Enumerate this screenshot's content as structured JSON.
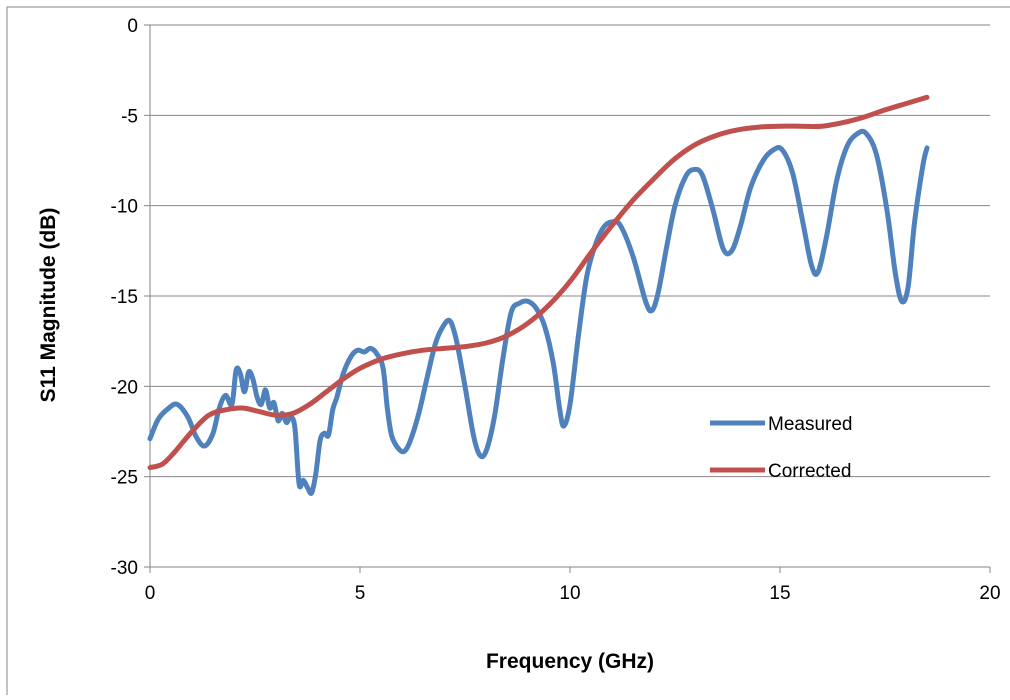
{
  "chart_data": {
    "type": "line",
    "title": "",
    "xlabel": "Frequency (GHz)",
    "ylabel": "S11 Magnitude (dB)",
    "xlim": [
      0,
      20
    ],
    "ylim": [
      -30,
      0
    ],
    "xticks": [
      0,
      5,
      10,
      15,
      20
    ],
    "yticks": [
      0,
      -5,
      -10,
      -15,
      -20,
      -25,
      -30
    ],
    "grid": "horizontal",
    "legend_position": "right, lower-middle",
    "series": [
      {
        "name": "Measured",
        "color": "#4F81BD",
        "points": [
          [
            0.0,
            -22.9
          ],
          [
            0.2,
            -21.8
          ],
          [
            0.45,
            -21.2
          ],
          [
            0.65,
            -21.0
          ],
          [
            0.9,
            -21.7
          ],
          [
            1.1,
            -22.8
          ],
          [
            1.3,
            -23.3
          ],
          [
            1.5,
            -22.6
          ],
          [
            1.65,
            -21.2
          ],
          [
            1.8,
            -20.5
          ],
          [
            1.95,
            -21.0
          ],
          [
            2.05,
            -19.1
          ],
          [
            2.15,
            -19.3
          ],
          [
            2.25,
            -20.3
          ],
          [
            2.35,
            -19.2
          ],
          [
            2.45,
            -19.6
          ],
          [
            2.55,
            -20.6
          ],
          [
            2.65,
            -21.0
          ],
          [
            2.75,
            -20.2
          ],
          [
            2.85,
            -21.2
          ],
          [
            2.95,
            -20.9
          ],
          [
            3.05,
            -21.9
          ],
          [
            3.15,
            -21.5
          ],
          [
            3.25,
            -22.0
          ],
          [
            3.35,
            -21.7
          ],
          [
            3.45,
            -22.3
          ],
          [
            3.55,
            -25.4
          ],
          [
            3.65,
            -25.2
          ],
          [
            3.75,
            -25.6
          ],
          [
            3.85,
            -25.9
          ],
          [
            3.95,
            -24.8
          ],
          [
            4.05,
            -23.0
          ],
          [
            4.15,
            -22.6
          ],
          [
            4.25,
            -22.7
          ],
          [
            4.35,
            -21.3
          ],
          [
            4.45,
            -20.6
          ],
          [
            4.6,
            -19.3
          ],
          [
            4.8,
            -18.3
          ],
          [
            4.95,
            -18.0
          ],
          [
            5.1,
            -18.1
          ],
          [
            5.25,
            -17.9
          ],
          [
            5.4,
            -18.2
          ],
          [
            5.55,
            -19.0
          ],
          [
            5.65,
            -21.2
          ],
          [
            5.75,
            -22.7
          ],
          [
            5.9,
            -23.4
          ],
          [
            6.05,
            -23.6
          ],
          [
            6.2,
            -23.0
          ],
          [
            6.4,
            -21.5
          ],
          [
            6.6,
            -19.5
          ],
          [
            6.8,
            -17.6
          ],
          [
            7.0,
            -16.6
          ],
          [
            7.15,
            -16.4
          ],
          [
            7.3,
            -17.5
          ],
          [
            7.5,
            -20.0
          ],
          [
            7.7,
            -22.7
          ],
          [
            7.85,
            -23.8
          ],
          [
            8.0,
            -23.6
          ],
          [
            8.2,
            -21.7
          ],
          [
            8.4,
            -18.5
          ],
          [
            8.6,
            -15.9
          ],
          [
            8.8,
            -15.4
          ],
          [
            9.0,
            -15.3
          ],
          [
            9.2,
            -15.7
          ],
          [
            9.4,
            -16.7
          ],
          [
            9.6,
            -18.7
          ],
          [
            9.75,
            -21.2
          ],
          [
            9.85,
            -22.2
          ],
          [
            10.0,
            -21.0
          ],
          [
            10.2,
            -17.2
          ],
          [
            10.4,
            -13.9
          ],
          [
            10.6,
            -12.2
          ],
          [
            10.8,
            -11.2
          ],
          [
            11.0,
            -10.9
          ],
          [
            11.2,
            -11.1
          ],
          [
            11.5,
            -12.8
          ],
          [
            11.8,
            -15.3
          ],
          [
            11.95,
            -15.8
          ],
          [
            12.1,
            -14.8
          ],
          [
            12.3,
            -12.3
          ],
          [
            12.5,
            -10.0
          ],
          [
            12.75,
            -8.4
          ],
          [
            12.95,
            -8.0
          ],
          [
            13.15,
            -8.3
          ],
          [
            13.4,
            -10.2
          ],
          [
            13.65,
            -12.4
          ],
          [
            13.85,
            -12.5
          ],
          [
            14.05,
            -11.2
          ],
          [
            14.3,
            -9.0
          ],
          [
            14.6,
            -7.5
          ],
          [
            14.85,
            -6.9
          ],
          [
            15.05,
            -6.9
          ],
          [
            15.3,
            -8.2
          ],
          [
            15.55,
            -11.0
          ],
          [
            15.75,
            -13.3
          ],
          [
            15.9,
            -13.7
          ],
          [
            16.1,
            -11.8
          ],
          [
            16.35,
            -8.6
          ],
          [
            16.6,
            -6.7
          ],
          [
            16.85,
            -6.0
          ],
          [
            17.05,
            -6.0
          ],
          [
            17.3,
            -7.2
          ],
          [
            17.55,
            -10.3
          ],
          [
            17.75,
            -13.8
          ],
          [
            17.9,
            -15.3
          ],
          [
            18.05,
            -14.5
          ],
          [
            18.2,
            -11.0
          ],
          [
            18.4,
            -7.8
          ],
          [
            18.5,
            -6.8
          ]
        ]
      },
      {
        "name": "Corrected",
        "color": "#C0504D",
        "points": [
          [
            0.0,
            -24.5
          ],
          [
            0.3,
            -24.3
          ],
          [
            0.6,
            -23.6
          ],
          [
            1.0,
            -22.5
          ],
          [
            1.4,
            -21.6
          ],
          [
            1.8,
            -21.3
          ],
          [
            2.2,
            -21.2
          ],
          [
            2.6,
            -21.4
          ],
          [
            3.0,
            -21.6
          ],
          [
            3.4,
            -21.5
          ],
          [
            3.8,
            -21.0
          ],
          [
            4.2,
            -20.3
          ],
          [
            4.6,
            -19.6
          ],
          [
            5.0,
            -19.0
          ],
          [
            5.5,
            -18.5
          ],
          [
            6.0,
            -18.2
          ],
          [
            6.5,
            -18.0
          ],
          [
            7.0,
            -17.9
          ],
          [
            7.5,
            -17.8
          ],
          [
            8.0,
            -17.6
          ],
          [
            8.5,
            -17.2
          ],
          [
            9.0,
            -16.5
          ],
          [
            9.5,
            -15.5
          ],
          [
            10.0,
            -14.2
          ],
          [
            10.5,
            -12.6
          ],
          [
            11.0,
            -11.1
          ],
          [
            11.5,
            -9.7
          ],
          [
            12.0,
            -8.5
          ],
          [
            12.5,
            -7.4
          ],
          [
            13.0,
            -6.6
          ],
          [
            13.5,
            -6.1
          ],
          [
            14.0,
            -5.8
          ],
          [
            14.5,
            -5.65
          ],
          [
            15.0,
            -5.6
          ],
          [
            15.5,
            -5.6
          ],
          [
            16.0,
            -5.6
          ],
          [
            16.5,
            -5.4
          ],
          [
            17.0,
            -5.1
          ],
          [
            17.5,
            -4.7
          ],
          [
            18.0,
            -4.35
          ],
          [
            18.5,
            -4.0
          ]
        ]
      }
    ]
  }
}
